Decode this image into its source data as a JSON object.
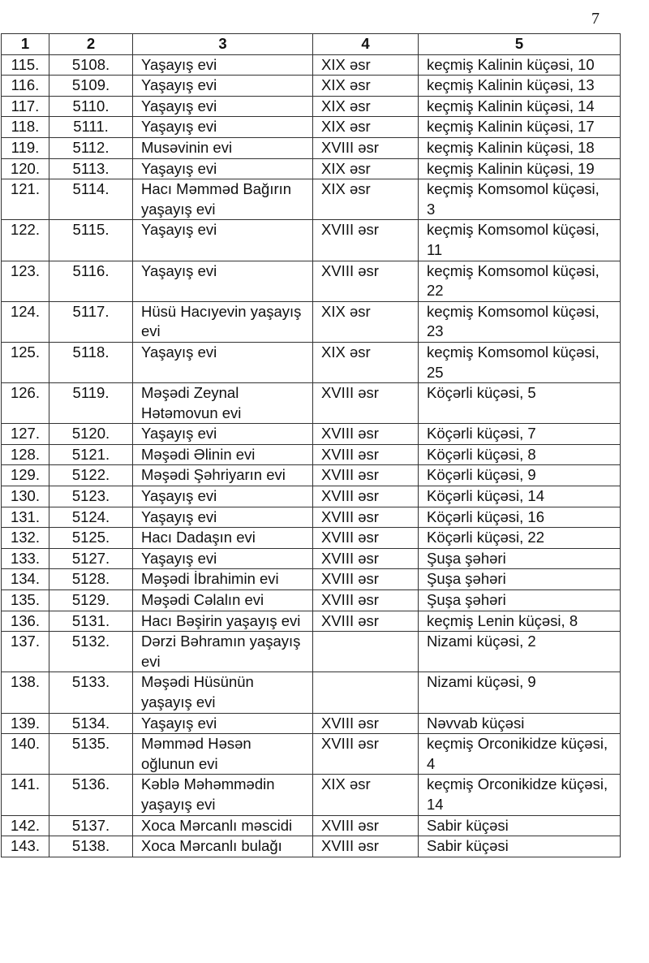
{
  "page_number": "7",
  "headers": [
    "1",
    "2",
    "3",
    "4",
    "5"
  ],
  "rows": [
    [
      "115.",
      "5108.",
      "Yaşayış evi",
      "XIX əsr",
      "keçmiş Kalinin küçəsi, 10"
    ],
    [
      "116.",
      "5109.",
      "Yaşayış evi",
      "XIX əsr",
      "keçmiş Kalinin küçəsi, 13"
    ],
    [
      "117.",
      "5110.",
      "Yaşayış evi",
      "XIX əsr",
      "keçmiş Kalinin küçəsi, 14"
    ],
    [
      "118.",
      "5111.",
      "Yaşayış evi",
      "XIX əsr",
      "keçmiş Kalinin küçəsi, 17"
    ],
    [
      "119.",
      "5112.",
      "Musəvinin evi",
      "XVIII əsr",
      "keçmiş Kalinin küçəsi, 18"
    ],
    [
      "120.",
      "5113.",
      "Yaşayış evi",
      "XIX əsr",
      "keçmiş Kalinin küçəsi, 19"
    ],
    [
      "121.",
      "5114.",
      "Hacı Məmməd Bağırın yaşayış evi",
      "XIX əsr",
      "keçmiş Komsomol küçəsi, 3"
    ],
    [
      "122.",
      "5115.",
      "Yaşayış evi",
      "XVIII əsr",
      "keçmiş Komsomol küçəsi, 11"
    ],
    [
      "123.",
      "5116.",
      "Yaşayış evi",
      "XVIII əsr",
      "keçmiş Komsomol küçəsi, 22"
    ],
    [
      "124.",
      "5117.",
      "Hüsü Hacıyevin yaşayış evi",
      "XIX əsr",
      "keçmiş Komsomol küçəsi, 23"
    ],
    [
      "125.",
      "5118.",
      "Yaşayış evi",
      "XIX əsr",
      "keçmiş Komsomol küçəsi, 25"
    ],
    [
      "126.",
      "5119.",
      "Məşədi Zeynal Hətəmovun evi",
      "XVIII əsr",
      "Köçərli küçəsi, 5"
    ],
    [
      "127.",
      "5120.",
      "Yaşayış evi",
      "XVIII əsr",
      "Köçərli küçəsi, 7"
    ],
    [
      "128.",
      "5121.",
      "Məşədi Əlinin evi",
      "XVIII əsr",
      "Köçərli küçəsi, 8"
    ],
    [
      "129.",
      "5122.",
      "Məşədi Şəhriyarın evi",
      "XVIII əsr",
      "Köçərli küçəsi, 9"
    ],
    [
      "130.",
      "5123.",
      "Yaşayış evi",
      "XVIII əsr",
      "Köçərli küçəsi, 14"
    ],
    [
      "131.",
      "5124.",
      "Yaşayış evi",
      "XVIII əsr",
      "Köçərli küçəsi, 16"
    ],
    [
      "132.",
      "5125.",
      "Hacı Dadaşın evi",
      "XVIII əsr",
      "Köçərli küçəsi, 22"
    ],
    [
      "133.",
      "5127.",
      "Yaşayış evi",
      "XVIII əsr",
      "Şuşa şəhəri"
    ],
    [
      "134.",
      "5128.",
      "Məşədi İbrahimin evi",
      "XVIII əsr",
      "Şuşa şəhəri"
    ],
    [
      "135.",
      "5129.",
      "Məşədi Cəlalın evi",
      "XVIII əsr",
      "Şuşa şəhəri"
    ],
    [
      "136.",
      "5131.",
      "Hacı Bəşirin yaşayış evi",
      "XVIII əsr",
      "keçmiş Lenin küçəsi, 8"
    ],
    [
      "137.",
      "5132.",
      "Dərzi Bəhramın yaşayış evi",
      "",
      "Nizami küçəsi, 2"
    ],
    [
      "138.",
      "5133.",
      "Məşədi Hüsünün yaşayış evi",
      "",
      "Nizami küçəsi, 9"
    ],
    [
      "139.",
      "5134.",
      "Yaşayış evi",
      "XVIII əsr",
      "Nəvvab küçəsi"
    ],
    [
      "140.",
      "5135.",
      "Məmməd Həsən oğlunun evi",
      "XVIII əsr",
      "keçmiş Orconikidze küçəsi, 4"
    ],
    [
      "141.",
      "5136.",
      "Kəblə Məhəmmədin yaşayış evi",
      "XIX əsr",
      "keçmiş Orconikidze küçəsi, 14"
    ],
    [
      "142.",
      "5137.",
      "Xoca Mərcanlı məscidi",
      "XVIII əsr",
      "Sabir küçəsi"
    ],
    [
      "143.",
      "5138.",
      "Xoca Mərcanlı bulağı",
      "XVIII əsr",
      "Sabir küçəsi"
    ]
  ]
}
